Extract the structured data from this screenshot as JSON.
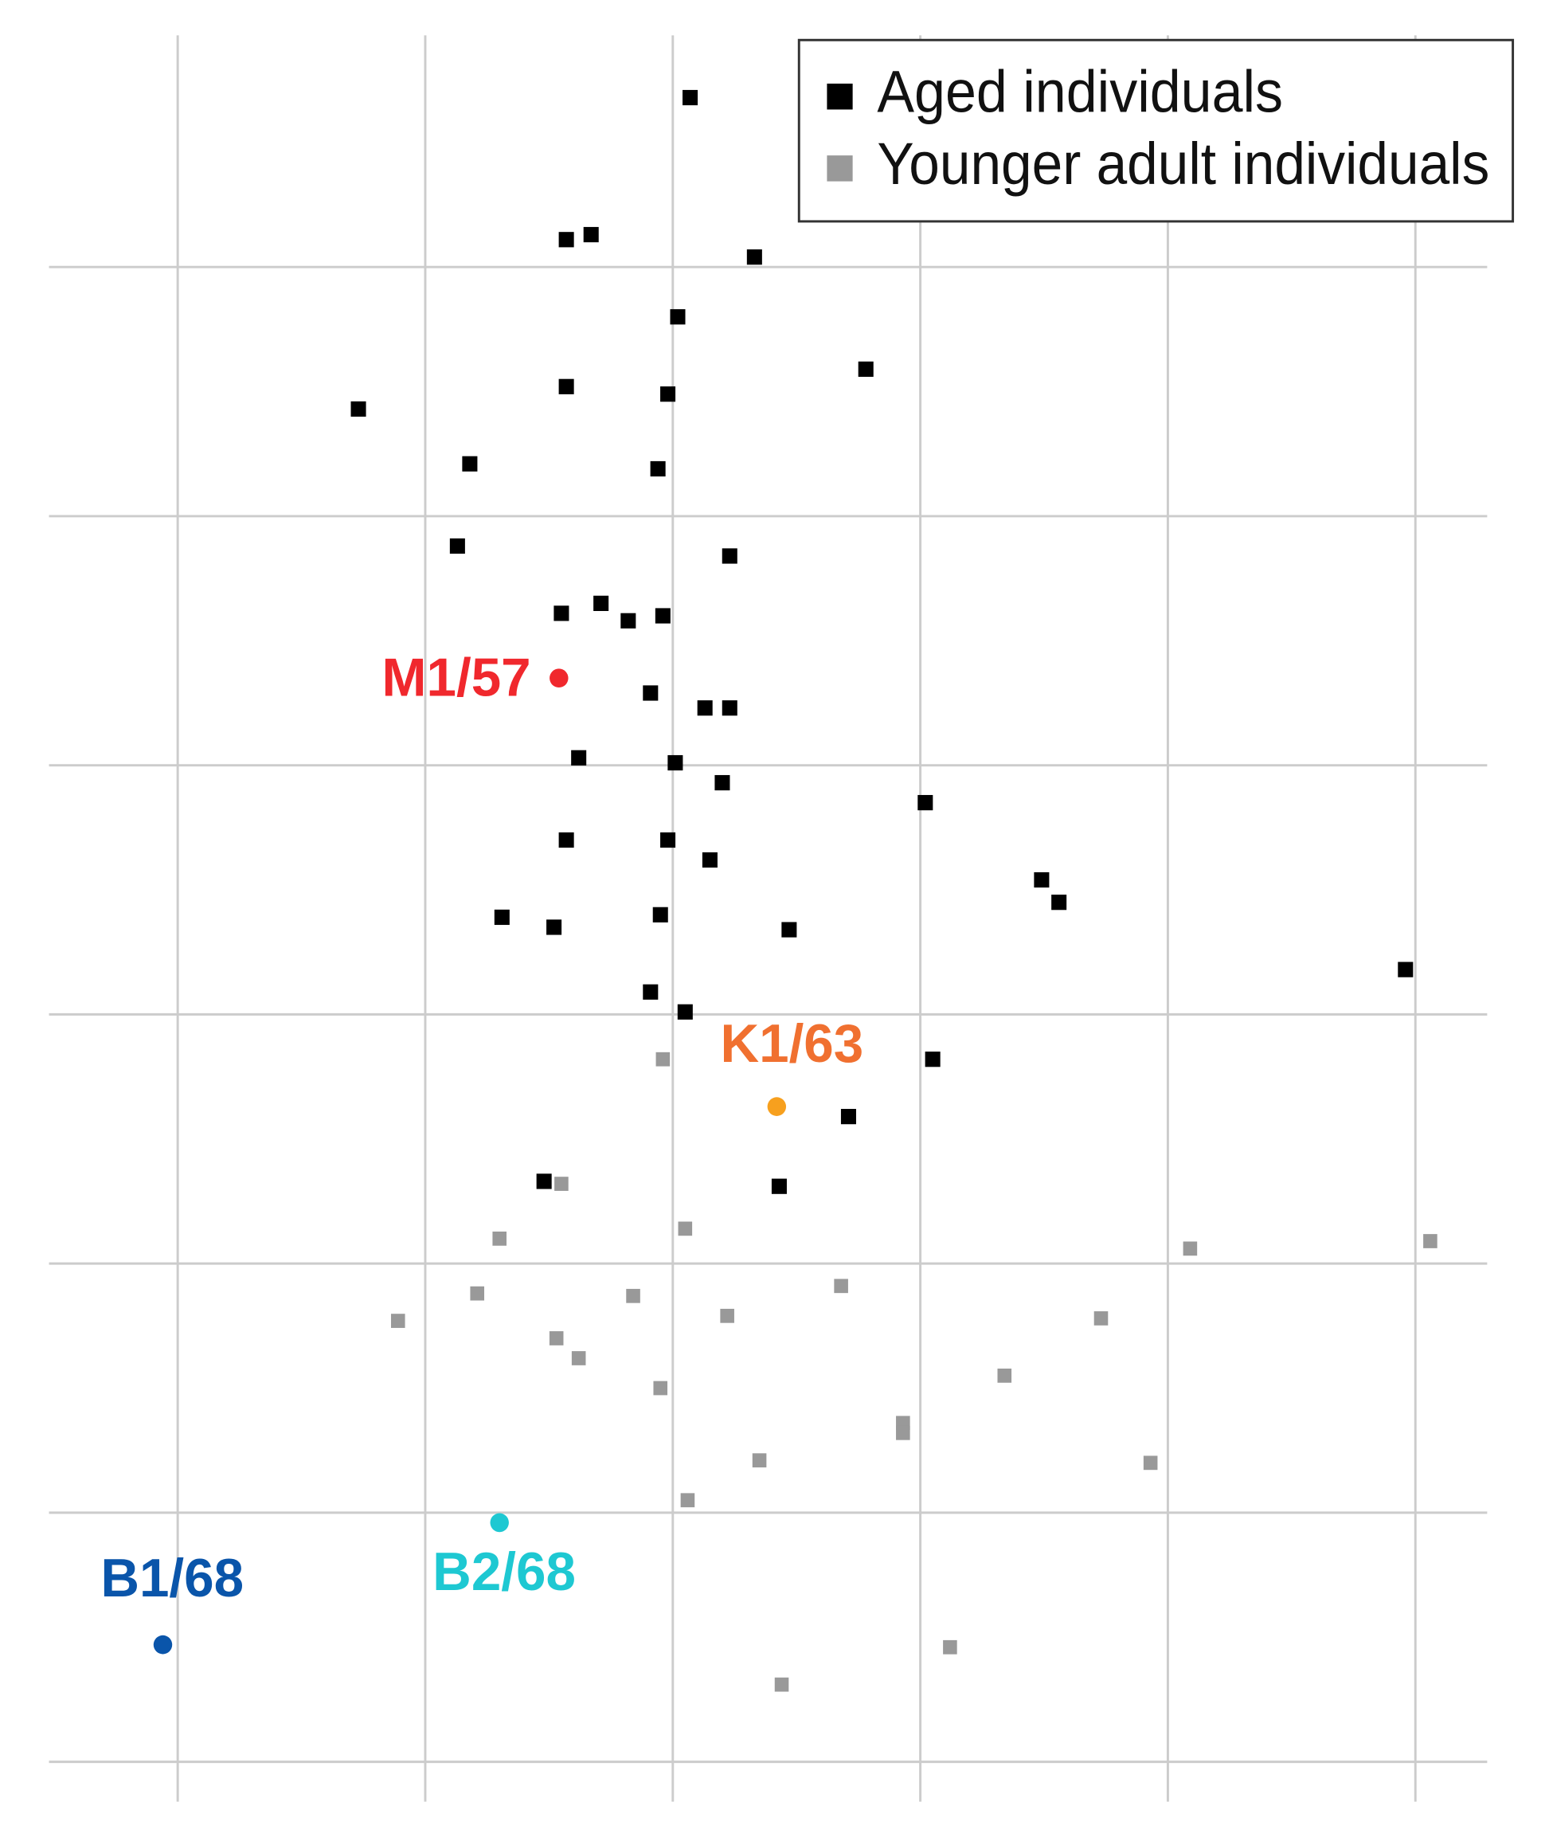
{
  "chart_data": {
    "type": "scatter",
    "xlim": [
      -0.52,
      5.29
    ],
    "ylim": [
      -0.16,
      6.93
    ],
    "xticks": [
      0,
      1,
      2,
      3,
      4,
      5
    ],
    "yticks": [
      0,
      1,
      2,
      3,
      4,
      5,
      6
    ],
    "grid": true,
    "legend": "upper right",
    "series": [
      {
        "name": "Aged individuals",
        "color": "#000000",
        "x": [
          2.07,
          1.57,
          1.67,
          2.33,
          2.02,
          2.78,
          1.57,
          1.98,
          0.73,
          1.18,
          1.94,
          1.13,
          2.23,
          1.55,
          1.71,
          1.82,
          1.96,
          1.91,
          2.13,
          2.23,
          1.62,
          2.01,
          2.2,
          3.02,
          1.57,
          1.98,
          2.15,
          3.49,
          3.56,
          1.31,
          1.52,
          1.95,
          2.47,
          4.96,
          1.91,
          2.05,
          3.05,
          2.71,
          1.48,
          2.43
        ],
        "values": [
          6.68,
          6.11,
          6.13,
          6.04,
          5.8,
          5.59,
          5.52,
          5.49,
          5.43,
          5.21,
          5.19,
          4.88,
          4.84,
          4.61,
          4.65,
          4.58,
          4.6,
          4.29,
          4.23,
          4.23,
          4.03,
          4.01,
          3.93,
          3.85,
          3.7,
          3.7,
          3.62,
          3.54,
          3.45,
          3.39,
          3.35,
          3.4,
          3.34,
          3.18,
          3.09,
          3.01,
          2.82,
          2.59,
          2.33,
          2.31
        ]
      },
      {
        "name": "Younger adult individuals",
        "color": "#999999",
        "x": [
          1.96,
          1.55,
          1.3,
          2.05,
          4.09,
          5.06,
          1.21,
          1.84,
          2.68,
          0.89,
          2.22,
          3.73,
          1.53,
          1.62,
          3.34,
          1.95,
          2.93,
          2.93,
          2.35,
          3.93,
          2.06,
          3.12,
          2.44
        ],
        "values": [
          2.82,
          2.32,
          2.1,
          2.14,
          2.06,
          2.09,
          1.88,
          1.87,
          1.91,
          1.77,
          1.79,
          1.78,
          1.7,
          1.62,
          1.55,
          1.5,
          1.36,
          1.32,
          1.21,
          1.2,
          1.05,
          0.46,
          0.31
        ]
      }
    ],
    "highlights": [
      {
        "label": "M1/57",
        "x": 1.54,
        "y": 4.35,
        "color": "#f0282d",
        "label_color": "#f0282d"
      },
      {
        "label": "K1/63",
        "x": 2.42,
        "y": 2.63,
        "color": "#f7a01e",
        "label_color": "#f07030"
      },
      {
        "label": "B2/68",
        "x": 1.3,
        "y": 0.96,
        "color": "#1ec8d2",
        "label_color": "#1ec8d2"
      },
      {
        "label": "B1/68",
        "x": -0.06,
        "y": 0.47,
        "color": "#0a55aa",
        "label_color": "#0a55aa"
      }
    ]
  }
}
